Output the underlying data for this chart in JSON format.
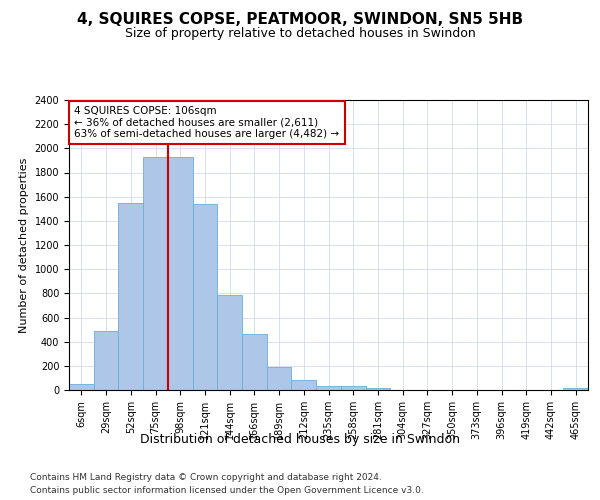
{
  "title": "4, SQUIRES COPSE, PEATMOOR, SWINDON, SN5 5HB",
  "subtitle": "Size of property relative to detached houses in Swindon",
  "xlabel": "Distribution of detached houses by size in Swindon",
  "ylabel": "Number of detached properties",
  "categories": [
    "6sqm",
    "29sqm",
    "52sqm",
    "75sqm",
    "98sqm",
    "121sqm",
    "144sqm",
    "166sqm",
    "189sqm",
    "212sqm",
    "235sqm",
    "258sqm",
    "281sqm",
    "304sqm",
    "327sqm",
    "350sqm",
    "373sqm",
    "396sqm",
    "419sqm",
    "442sqm",
    "465sqm"
  ],
  "values": [
    50,
    490,
    1550,
    1930,
    1930,
    1540,
    790,
    460,
    190,
    85,
    35,
    30,
    20,
    0,
    0,
    0,
    0,
    0,
    0,
    0,
    20
  ],
  "bar_color": "#aec6e8",
  "bar_edge_color": "#6baed6",
  "vline_index": 4,
  "vline_color": "#cc0000",
  "annotation_text": "4 SQUIRES COPSE: 106sqm\n← 36% of detached houses are smaller (2,611)\n63% of semi-detached houses are larger (4,482) →",
  "annotation_box_color": "#cc0000",
  "ylim": [
    0,
    2400
  ],
  "yticks": [
    0,
    200,
    400,
    600,
    800,
    1000,
    1200,
    1400,
    1600,
    1800,
    2000,
    2200,
    2400
  ],
  "footer_line1": "Contains HM Land Registry data © Crown copyright and database right 2024.",
  "footer_line2": "Contains public sector information licensed under the Open Government Licence v3.0.",
  "bg_color": "#ffffff",
  "grid_color": "#c8d4e8",
  "title_fontsize": 11,
  "subtitle_fontsize": 9,
  "xlabel_fontsize": 9,
  "ylabel_fontsize": 8,
  "footer_fontsize": 6.5,
  "annotation_fontsize": 7.5,
  "tick_fontsize": 7
}
